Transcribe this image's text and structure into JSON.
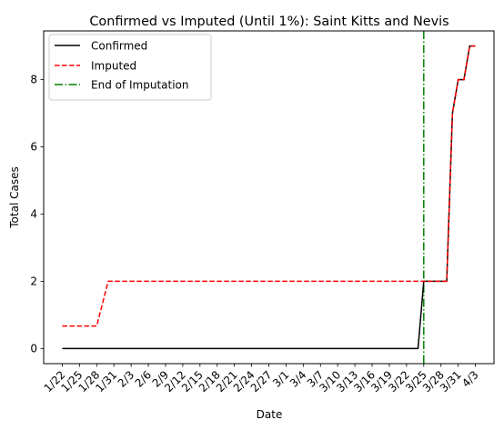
{
  "chart_data": {
    "type": "line",
    "title": "Confirmed vs Imputed (Until 1%): Saint Kitts and Nevis",
    "xlabel": "Date",
    "ylabel": "Total Cases",
    "x": [
      "1/22",
      "1/23",
      "1/24",
      "1/25",
      "1/26",
      "1/27",
      "1/28",
      "1/29",
      "1/30",
      "1/31",
      "2/1",
      "2/2",
      "2/3",
      "2/4",
      "2/5",
      "2/6",
      "2/7",
      "2/8",
      "2/9",
      "2/10",
      "2/11",
      "2/12",
      "2/13",
      "2/14",
      "2/15",
      "2/16",
      "2/17",
      "2/18",
      "2/19",
      "2/20",
      "2/21",
      "2/22",
      "2/23",
      "2/24",
      "2/25",
      "2/26",
      "2/27",
      "2/28",
      "2/29",
      "3/1",
      "3/2",
      "3/3",
      "3/4",
      "3/5",
      "3/6",
      "3/7",
      "3/8",
      "3/9",
      "3/10",
      "3/11",
      "3/12",
      "3/13",
      "3/14",
      "3/15",
      "3/16",
      "3/17",
      "3/18",
      "3/19",
      "3/20",
      "3/21",
      "3/22",
      "3/23",
      "3/24",
      "3/25",
      "3/26",
      "3/27",
      "3/28",
      "3/29",
      "3/30",
      "3/31",
      "4/1",
      "4/2",
      "4/3"
    ],
    "x_ticks": [
      "1/22",
      "1/25",
      "1/28",
      "1/31",
      "2/3",
      "2/6",
      "2/9",
      "2/12",
      "2/15",
      "2/18",
      "2/21",
      "2/24",
      "2/27",
      "3/1",
      "3/4",
      "3/7",
      "3/10",
      "3/13",
      "3/16",
      "3/19",
      "3/22",
      "3/25",
      "3/28",
      "3/31",
      "4/3"
    ],
    "y_ticks": [
      0,
      2,
      4,
      6,
      8
    ],
    "ylim": [
      -0.45,
      9.45
    ],
    "series": [
      {
        "name": "Confirmed",
        "color": "#000000",
        "style": "solid",
        "values": [
          0,
          0,
          0,
          0,
          0,
          0,
          0,
          0,
          0,
          0,
          0,
          0,
          0,
          0,
          0,
          0,
          0,
          0,
          0,
          0,
          0,
          0,
          0,
          0,
          0,
          0,
          0,
          0,
          0,
          0,
          0,
          0,
          0,
          0,
          0,
          0,
          0,
          0,
          0,
          0,
          0,
          0,
          0,
          0,
          0,
          0,
          0,
          0,
          0,
          0,
          0,
          0,
          0,
          0,
          0,
          0,
          0,
          0,
          0,
          0,
          0,
          0,
          0,
          2,
          2,
          2,
          2,
          2,
          7,
          8,
          8,
          9,
          9
        ]
      },
      {
        "name": "Imputed",
        "color": "#ff0000",
        "style": "dashed",
        "values": [
          0.67,
          0.67,
          0.67,
          0.67,
          0.67,
          0.67,
          0.67,
          1.33,
          2,
          2,
          2,
          2,
          2,
          2,
          2,
          2,
          2,
          2,
          2,
          2,
          2,
          2,
          2,
          2,
          2,
          2,
          2,
          2,
          2,
          2,
          2,
          2,
          2,
          2,
          2,
          2,
          2,
          2,
          2,
          2,
          2,
          2,
          2,
          2,
          2,
          2,
          2,
          2,
          2,
          2,
          2,
          2,
          2,
          2,
          2,
          2,
          2,
          2,
          2,
          2,
          2,
          2,
          2,
          2,
          2,
          2,
          2,
          2,
          7,
          8,
          8,
          9,
          9
        ]
      }
    ],
    "vline": {
      "name": "End of Imputation",
      "x": "3/25",
      "color": "#008000",
      "style": "dashdot"
    },
    "legend_position": "upper-left",
    "grid": false
  }
}
